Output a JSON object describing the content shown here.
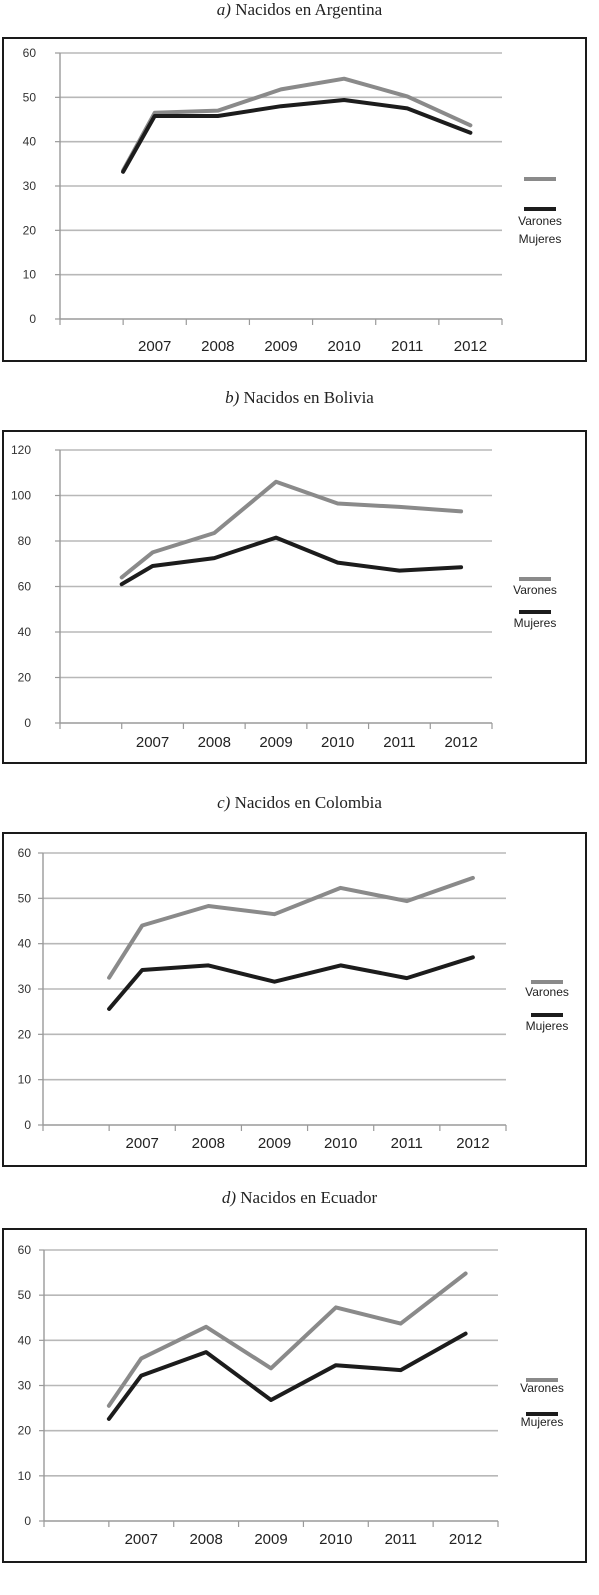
{
  "legend": {
    "varones": "Varones",
    "mujeres": "Mujeres"
  },
  "colors": {
    "varones": "#8a8a8a",
    "mujeres": "#1c1c1c",
    "grid": "#b8b8b8",
    "axis": "#9a9a9a"
  },
  "chart_data": [
    {
      "type": "line",
      "title_letter": "a)",
      "title_text": " Nacidos en Argentina",
      "categories": [
        "2007",
        "2008",
        "2009",
        "2010",
        "2011",
        "2012"
      ],
      "y_ticks": [
        "0",
        "10",
        "20",
        "30",
        "40",
        "50",
        "60"
      ],
      "ylim": [
        0,
        60
      ],
      "series": [
        {
          "name": "Varones",
          "x": [
            2006.5,
            2007,
            2008,
            2009,
            2010,
            2011,
            2012
          ],
          "values": [
            33.5,
            46.5,
            47,
            51.8,
            54.2,
            50.2,
            43.7
          ]
        },
        {
          "name": "Mujeres",
          "x": [
            2006.5,
            2007,
            2008,
            2009,
            2010,
            2011,
            2012
          ],
          "values": [
            33.2,
            45.8,
            45.8,
            48,
            49.4,
            47.5,
            42
          ]
        }
      ]
    },
    {
      "type": "line",
      "title_letter": "b)",
      "title_text": " Nacidos en Bolivia",
      "categories": [
        "2007",
        "2008",
        "2009",
        "2010",
        "2011",
        "2012"
      ],
      "y_ticks": [
        "0",
        "20",
        "40",
        "60",
        "80",
        "100",
        "120"
      ],
      "ylim": [
        0,
        120
      ],
      "series": [
        {
          "name": "Varones",
          "x": [
            2006.5,
            2007,
            2008,
            2009,
            2010,
            2011,
            2012
          ],
          "values": [
            64,
            75,
            83.5,
            106,
            96.5,
            95,
            93
          ]
        },
        {
          "name": "Mujeres",
          "x": [
            2006.5,
            2007,
            2008,
            2009,
            2010,
            2011,
            2012
          ],
          "values": [
            61,
            69,
            72.5,
            81.5,
            70.5,
            67,
            68.5
          ]
        }
      ]
    },
    {
      "type": "line",
      "title_letter": "c)",
      "title_text": " Nacidos en Colombia",
      "categories": [
        "2007",
        "2008",
        "2009",
        "2010",
        "2011",
        "2012"
      ],
      "y_ticks": [
        "0",
        "10",
        "20",
        "30",
        "40",
        "50",
        "60"
      ],
      "ylim": [
        0,
        60
      ],
      "series": [
        {
          "name": "Varones",
          "x": [
            2006.5,
            2007,
            2008,
            2009,
            2010,
            2011,
            2012
          ],
          "values": [
            32.5,
            44,
            48.3,
            46.5,
            52.3,
            49.4,
            54.5
          ]
        },
        {
          "name": "Mujeres",
          "x": [
            2006.5,
            2007,
            2008,
            2009,
            2010,
            2011,
            2012
          ],
          "values": [
            25.6,
            34.2,
            35.2,
            31.6,
            35.2,
            32.4,
            37
          ]
        }
      ]
    },
    {
      "type": "line",
      "title_letter": "d)",
      "title_text": " Nacidos en Ecuador",
      "categories": [
        "2007",
        "2008",
        "2009",
        "2010",
        "2011",
        "2012"
      ],
      "y_ticks": [
        "0",
        "10",
        "20",
        "30",
        "40",
        "50",
        "60"
      ],
      "ylim": [
        0,
        60
      ],
      "series": [
        {
          "name": "Varones",
          "x": [
            2006.5,
            2007,
            2008,
            2009,
            2010,
            2011,
            2012
          ],
          "values": [
            25.5,
            36,
            43,
            33.8,
            47.3,
            43.7,
            54.8
          ]
        },
        {
          "name": "Mujeres",
          "x": [
            2006.5,
            2007,
            2008,
            2009,
            2010,
            2011,
            2012
          ],
          "values": [
            22.6,
            32.2,
            37.4,
            26.8,
            34.5,
            33.4,
            41.5
          ]
        }
      ]
    }
  ]
}
